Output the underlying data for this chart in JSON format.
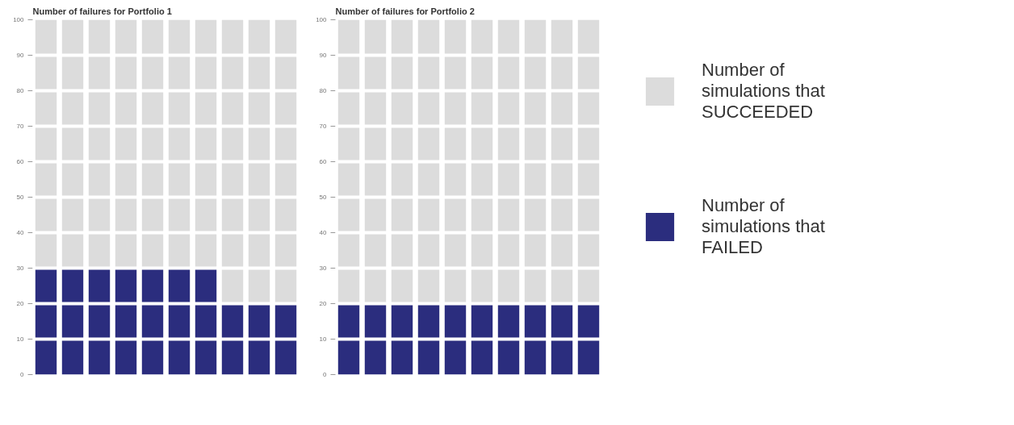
{
  "chart_data": [
    {
      "type": "bar",
      "title": "Number of failures for Portfolio 1",
      "stacked": true,
      "categories": [
        null,
        null,
        null,
        null,
        null,
        null,
        null,
        null,
        null,
        null
      ],
      "series": [
        {
          "color": "#2b2d7e",
          "values": [
            30,
            30,
            30,
            30,
            30,
            30,
            30,
            20,
            20,
            20
          ]
        },
        {
          "color": "#dcdcdc",
          "values": [
            70,
            70,
            70,
            70,
            70,
            70,
            70,
            80,
            80,
            80
          ]
        }
      ],
      "ylim": [
        0,
        100
      ],
      "yticks": [
        0,
        10,
        20,
        30,
        40,
        50,
        60,
        70,
        80,
        90,
        100
      ],
      "grid": "y",
      "tick_labels": "y"
    },
    {
      "type": "bar",
      "title": "Number of failures for Portfolio 2",
      "stacked": true,
      "categories": [
        null,
        null,
        null,
        null,
        null,
        null,
        null,
        null,
        null,
        null
      ],
      "series": [
        {
          "name": "Number of simulations that FAILED",
          "color": "#2b2d7e",
          "values": [
            20,
            20,
            20,
            20,
            20,
            20,
            20,
            20,
            20,
            20
          ]
        },
        {
          "name": "Number of simulations that SUCCEEDED",
          "color": "#dcdcdc",
          "values": [
            80,
            80,
            80,
            80,
            80,
            80,
            80,
            80,
            80,
            80
          ]
        }
      ],
      "ylim": [
        0,
        100
      ],
      "yticks": [
        0,
        10,
        20,
        30,
        40,
        50,
        60,
        70,
        80,
        90,
        100
      ],
      "grid": "y",
      "tick_labels": "y",
      "legend": "right"
    }
  ]
}
